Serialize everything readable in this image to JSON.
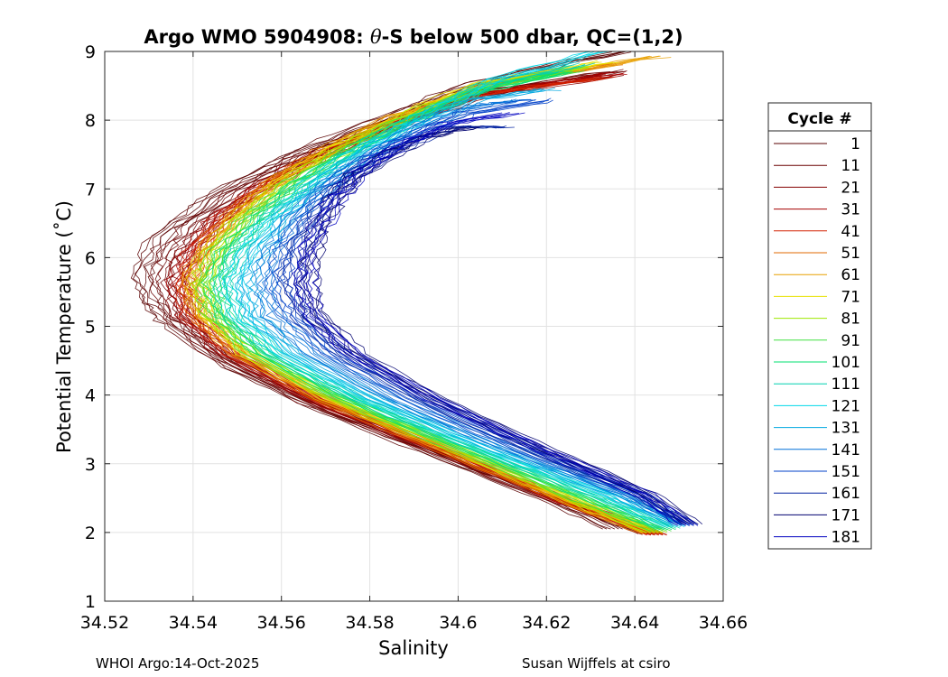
{
  "chart_data": {
    "type": "line",
    "title_prefix": "Argo WMO 5904908: ",
    "title_theta": "θ",
    "title_suffix": "-S below 500 dbar,  QC=(1,2)",
    "xlabel": "Salinity",
    "ylabel": "Potential Temperature (˚C)",
    "xlim": [
      34.52,
      34.66
    ],
    "ylim": [
      1,
      9
    ],
    "xticks": [
      34.52,
      34.54,
      34.56,
      34.58,
      34.6,
      34.62,
      34.64,
      34.66
    ],
    "xtick_labels": [
      "34.52",
      "34.54",
      "34.56",
      "34.58",
      "34.6",
      "34.62",
      "34.64",
      "34.66"
    ],
    "yticks": [
      1,
      2,
      3,
      4,
      5,
      6,
      7,
      8,
      9
    ],
    "ytick_labels": [
      "1",
      "2",
      "3",
      "4",
      "5",
      "6",
      "7",
      "8",
      "9"
    ],
    "grid": true,
    "legend_title": "Cycle #",
    "legend_position": "outside-right",
    "series": [
      {
        "name": "1",
        "color": "#5a0000",
        "points": [
          [
            34.637,
            9.0
          ],
          [
            34.604,
            8.55
          ],
          [
            34.58,
            7.95
          ],
          [
            34.562,
            7.48
          ],
          [
            34.546,
            6.95
          ],
          [
            34.532,
            6.3
          ],
          [
            34.528,
            5.78
          ],
          [
            34.53,
            5.35
          ],
          [
            34.536,
            4.98
          ],
          [
            34.549,
            4.4
          ],
          [
            34.571,
            3.75
          ],
          [
            34.598,
            3.05
          ],
          [
            34.62,
            2.5
          ],
          [
            34.635,
            2.05
          ]
        ]
      },
      {
        "name": "11",
        "color": "#6a0000",
        "points": [
          [
            34.637,
            8.72
          ],
          [
            34.605,
            8.4
          ],
          [
            34.582,
            7.9
          ],
          [
            34.566,
            7.5
          ],
          [
            34.552,
            7.05
          ],
          [
            34.54,
            6.5
          ],
          [
            34.534,
            6.0
          ],
          [
            34.533,
            5.55
          ],
          [
            34.536,
            5.1
          ],
          [
            34.546,
            4.55
          ],
          [
            34.566,
            3.9
          ],
          [
            34.596,
            3.15
          ],
          [
            34.623,
            2.45
          ],
          [
            34.643,
            1.98
          ]
        ]
      },
      {
        "name": "21",
        "color": "#850000",
        "points": [
          [
            34.635,
            8.65
          ],
          [
            34.605,
            8.35
          ],
          [
            34.583,
            7.88
          ],
          [
            34.568,
            7.45
          ],
          [
            34.555,
            7.0
          ],
          [
            34.545,
            6.55
          ],
          [
            34.538,
            6.05
          ],
          [
            34.536,
            5.6
          ],
          [
            34.538,
            5.15
          ],
          [
            34.547,
            4.6
          ],
          [
            34.566,
            3.95
          ],
          [
            34.595,
            3.2
          ],
          [
            34.624,
            2.45
          ],
          [
            34.644,
            1.97
          ]
        ]
      },
      {
        "name": "31",
        "color": "#a50000",
        "points": [
          [
            34.636,
            8.68
          ],
          [
            34.604,
            8.38
          ],
          [
            34.583,
            7.86
          ],
          [
            34.567,
            7.45
          ],
          [
            34.554,
            6.98
          ],
          [
            34.545,
            6.5
          ],
          [
            34.539,
            6.02
          ],
          [
            34.537,
            5.6
          ],
          [
            34.539,
            5.15
          ],
          [
            34.548,
            4.6
          ],
          [
            34.567,
            3.95
          ],
          [
            34.596,
            3.2
          ],
          [
            34.624,
            2.46
          ],
          [
            34.645,
            1.97
          ]
        ]
      },
      {
        "name": "41",
        "color": "#d42000",
        "points": [
          [
            34.633,
            8.62
          ],
          [
            34.604,
            8.36
          ],
          [
            34.584,
            7.9
          ],
          [
            34.569,
            7.48
          ],
          [
            34.556,
            7.02
          ],
          [
            34.546,
            6.55
          ],
          [
            34.54,
            6.05
          ],
          [
            34.538,
            5.6
          ],
          [
            34.54,
            5.15
          ],
          [
            34.549,
            4.6
          ],
          [
            34.568,
            3.95
          ],
          [
            34.597,
            3.2
          ],
          [
            34.625,
            2.44
          ],
          [
            34.645,
            1.96
          ]
        ]
      },
      {
        "name": "51",
        "color": "#e06a00",
        "points": [
          [
            34.636,
            8.82
          ],
          [
            34.606,
            8.5
          ],
          [
            34.585,
            8.0
          ],
          [
            34.57,
            7.55
          ],
          [
            34.558,
            7.1
          ],
          [
            34.549,
            6.6
          ],
          [
            34.542,
            6.1
          ],
          [
            34.539,
            5.62
          ],
          [
            34.541,
            5.15
          ],
          [
            34.55,
            4.6
          ],
          [
            34.569,
            3.95
          ],
          [
            34.597,
            3.2
          ],
          [
            34.625,
            2.45
          ],
          [
            34.644,
            1.98
          ]
        ]
      },
      {
        "name": "61",
        "color": "#e8a000",
        "points": [
          [
            34.645,
            8.93
          ],
          [
            34.608,
            8.55
          ],
          [
            34.586,
            8.05
          ],
          [
            34.571,
            7.6
          ],
          [
            34.559,
            7.12
          ],
          [
            34.55,
            6.62
          ],
          [
            34.543,
            6.1
          ],
          [
            34.54,
            5.62
          ],
          [
            34.542,
            5.15
          ],
          [
            34.551,
            4.6
          ],
          [
            34.57,
            3.95
          ],
          [
            34.598,
            3.2
          ],
          [
            34.625,
            2.46
          ],
          [
            34.644,
            1.99
          ]
        ]
      },
      {
        "name": "71",
        "color": "#e8e000",
        "points": [
          [
            34.634,
            8.85
          ],
          [
            34.606,
            8.55
          ],
          [
            34.587,
            8.05
          ],
          [
            34.572,
            7.6
          ],
          [
            34.56,
            7.12
          ],
          [
            34.551,
            6.62
          ],
          [
            34.544,
            6.1
          ],
          [
            34.541,
            5.62
          ],
          [
            34.543,
            5.15
          ],
          [
            34.552,
            4.6
          ],
          [
            34.571,
            3.95
          ],
          [
            34.599,
            3.2
          ],
          [
            34.626,
            2.47
          ],
          [
            34.644,
            2.0
          ]
        ]
      },
      {
        "name": "81",
        "color": "#9ee800",
        "points": [
          [
            34.628,
            8.78
          ],
          [
            34.606,
            8.5
          ],
          [
            34.588,
            8.05
          ],
          [
            34.574,
            7.6
          ],
          [
            34.562,
            7.12
          ],
          [
            34.552,
            6.62
          ],
          [
            34.545,
            6.1
          ],
          [
            34.542,
            5.62
          ],
          [
            34.544,
            5.15
          ],
          [
            34.553,
            4.6
          ],
          [
            34.572,
            3.95
          ],
          [
            34.6,
            3.2
          ],
          [
            34.627,
            2.47
          ],
          [
            34.645,
            2.0
          ]
        ]
      },
      {
        "name": "91",
        "color": "#40e040",
        "points": [
          [
            34.626,
            8.72
          ],
          [
            34.605,
            8.45
          ],
          [
            34.588,
            8.0
          ],
          [
            34.575,
            7.55
          ],
          [
            34.563,
            7.1
          ],
          [
            34.553,
            6.6
          ],
          [
            34.546,
            6.1
          ],
          [
            34.543,
            5.62
          ],
          [
            34.545,
            5.15
          ],
          [
            34.554,
            4.6
          ],
          [
            34.573,
            3.95
          ],
          [
            34.601,
            3.2
          ],
          [
            34.628,
            2.48
          ],
          [
            34.646,
            2.02
          ]
        ]
      },
      {
        "name": "101",
        "color": "#00e070",
        "points": [
          [
            34.624,
            8.7
          ],
          [
            34.605,
            8.42
          ],
          [
            34.589,
            7.98
          ],
          [
            34.576,
            7.55
          ],
          [
            34.564,
            7.08
          ],
          [
            34.555,
            6.6
          ],
          [
            34.548,
            6.1
          ],
          [
            34.545,
            5.62
          ],
          [
            34.547,
            5.15
          ],
          [
            34.556,
            4.6
          ],
          [
            34.575,
            3.95
          ],
          [
            34.603,
            3.2
          ],
          [
            34.63,
            2.5
          ],
          [
            34.647,
            2.04
          ]
        ]
      },
      {
        "name": "111",
        "color": "#00d0b0",
        "points": [
          [
            34.628,
            8.82
          ],
          [
            34.606,
            8.5
          ],
          [
            34.59,
            8.02
          ],
          [
            34.577,
            7.58
          ],
          [
            34.566,
            7.1
          ],
          [
            34.557,
            6.6
          ],
          [
            34.55,
            6.1
          ],
          [
            34.547,
            5.62
          ],
          [
            34.549,
            5.15
          ],
          [
            34.558,
            4.6
          ],
          [
            34.577,
            3.95
          ],
          [
            34.605,
            3.2
          ],
          [
            34.632,
            2.52
          ],
          [
            34.648,
            2.06
          ]
        ]
      },
      {
        "name": "121",
        "color": "#00d8e8",
        "points": [
          [
            34.632,
            9.0
          ],
          [
            34.608,
            8.58
          ],
          [
            34.592,
            8.05
          ],
          [
            34.579,
            7.6
          ],
          [
            34.568,
            7.12
          ],
          [
            34.559,
            6.62
          ],
          [
            34.552,
            6.1
          ],
          [
            34.549,
            5.62
          ],
          [
            34.551,
            5.15
          ],
          [
            34.56,
            4.6
          ],
          [
            34.579,
            3.95
          ],
          [
            34.607,
            3.2
          ],
          [
            34.634,
            2.53
          ],
          [
            34.649,
            2.08
          ]
        ]
      },
      {
        "name": "131",
        "color": "#00a8e0",
        "points": [
          [
            34.62,
            8.45
          ],
          [
            34.604,
            8.3
          ],
          [
            34.591,
            7.95
          ],
          [
            34.579,
            7.52
          ],
          [
            34.569,
            7.08
          ],
          [
            34.561,
            6.6
          ],
          [
            34.555,
            6.1
          ],
          [
            34.552,
            5.62
          ],
          [
            34.554,
            5.15
          ],
          [
            34.563,
            4.6
          ],
          [
            34.582,
            3.95
          ],
          [
            34.609,
            3.2
          ],
          [
            34.636,
            2.54
          ],
          [
            34.65,
            2.1
          ]
        ]
      },
      {
        "name": "141",
        "color": "#0070d8",
        "points": [
          [
            34.615,
            8.3
          ],
          [
            34.603,
            8.2
          ],
          [
            34.591,
            7.9
          ],
          [
            34.58,
            7.5
          ],
          [
            34.57,
            7.05
          ],
          [
            34.563,
            6.6
          ],
          [
            34.558,
            6.1
          ],
          [
            34.556,
            5.62
          ],
          [
            34.558,
            5.15
          ],
          [
            34.567,
            4.6
          ],
          [
            34.585,
            3.95
          ],
          [
            34.612,
            3.2
          ],
          [
            34.638,
            2.55
          ],
          [
            34.651,
            2.1
          ]
        ]
      },
      {
        "name": "151",
        "color": "#0040c8",
        "points": [
          [
            34.62,
            8.3
          ],
          [
            34.602,
            8.1
          ],
          [
            34.59,
            7.8
          ],
          [
            34.58,
            7.45
          ],
          [
            34.571,
            7.02
          ],
          [
            34.565,
            6.58
          ],
          [
            34.561,
            6.1
          ],
          [
            34.559,
            5.62
          ],
          [
            34.562,
            5.15
          ],
          [
            34.571,
            4.6
          ],
          [
            34.589,
            3.95
          ],
          [
            34.615,
            3.2
          ],
          [
            34.64,
            2.56
          ],
          [
            34.652,
            2.1
          ]
        ]
      },
      {
        "name": "161",
        "color": "#0020a0",
        "points": [
          [
            34.61,
            7.9
          ],
          [
            34.598,
            7.9
          ],
          [
            34.587,
            7.6
          ],
          [
            34.578,
            7.3
          ],
          [
            34.572,
            6.95
          ],
          [
            34.567,
            6.55
          ],
          [
            34.563,
            6.1
          ],
          [
            34.562,
            5.62
          ],
          [
            34.565,
            5.15
          ],
          [
            34.574,
            4.6
          ],
          [
            34.592,
            3.95
          ],
          [
            34.617,
            3.2
          ],
          [
            34.641,
            2.56
          ],
          [
            34.652,
            2.12
          ]
        ]
      },
      {
        "name": "171",
        "color": "#000070",
        "points": [
          [
            34.603,
            7.9
          ],
          [
            34.592,
            7.75
          ],
          [
            34.583,
            7.45
          ],
          [
            34.576,
            7.15
          ],
          [
            34.572,
            6.85
          ],
          [
            34.569,
            6.5
          ],
          [
            34.567,
            6.1
          ],
          [
            34.566,
            5.62
          ],
          [
            34.568,
            5.15
          ],
          [
            34.577,
            4.6
          ],
          [
            34.595,
            3.95
          ],
          [
            34.62,
            3.2
          ],
          [
            34.643,
            2.56
          ],
          [
            34.653,
            2.12
          ]
        ]
      },
      {
        "name": "181",
        "color": "#0000c0",
        "points": [
          [
            34.612,
            8.1
          ],
          [
            34.598,
            7.95
          ],
          [
            34.586,
            7.6
          ],
          [
            34.578,
            7.25
          ],
          [
            34.573,
            6.9
          ],
          [
            34.569,
            6.5
          ],
          [
            34.566,
            6.1
          ],
          [
            34.565,
            5.62
          ],
          [
            34.567,
            5.15
          ],
          [
            34.576,
            4.6
          ],
          [
            34.594,
            3.95
          ],
          [
            34.619,
            3.2
          ],
          [
            34.642,
            2.56
          ],
          [
            34.652,
            2.1
          ]
        ]
      }
    ]
  },
  "footer": {
    "left": "WHOI Argo:14-Oct-2025",
    "right": "Susan Wijffels at csiro"
  }
}
